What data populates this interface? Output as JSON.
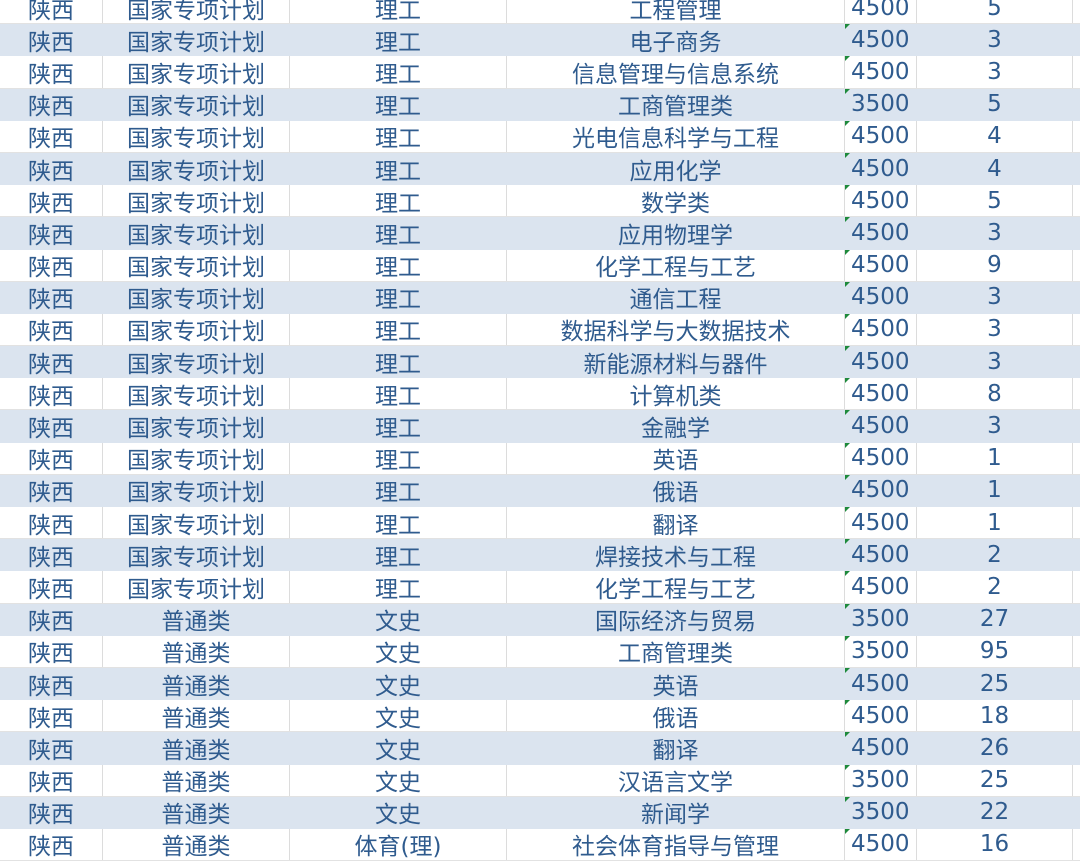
{
  "colors": {
    "text": "#2f5b8e",
    "band": "#dbe4ef",
    "number_marker": "#1e8a3c"
  },
  "rows": [
    [
      "陕西",
      "国家专项计划",
      "理工",
      "工程管理",
      "4500",
      "5"
    ],
    [
      "陕西",
      "国家专项计划",
      "理工",
      "电子商务",
      "4500",
      "3"
    ],
    [
      "陕西",
      "国家专项计划",
      "理工",
      "信息管理与信息系统",
      "4500",
      "3"
    ],
    [
      "陕西",
      "国家专项计划",
      "理工",
      "工商管理类",
      "3500",
      "5"
    ],
    [
      "陕西",
      "国家专项计划",
      "理工",
      "光电信息科学与工程",
      "4500",
      "4"
    ],
    [
      "陕西",
      "国家专项计划",
      "理工",
      "应用化学",
      "4500",
      "4"
    ],
    [
      "陕西",
      "国家专项计划",
      "理工",
      "数学类",
      "4500",
      "5"
    ],
    [
      "陕西",
      "国家专项计划",
      "理工",
      "应用物理学",
      "4500",
      "3"
    ],
    [
      "陕西",
      "国家专项计划",
      "理工",
      "化学工程与工艺",
      "4500",
      "9"
    ],
    [
      "陕西",
      "国家专项计划",
      "理工",
      "通信工程",
      "4500",
      "3"
    ],
    [
      "陕西",
      "国家专项计划",
      "理工",
      "数据科学与大数据技术",
      "4500",
      "3"
    ],
    [
      "陕西",
      "国家专项计划",
      "理工",
      "新能源材料与器件",
      "4500",
      "3"
    ],
    [
      "陕西",
      "国家专项计划",
      "理工",
      "计算机类",
      "4500",
      "8"
    ],
    [
      "陕西",
      "国家专项计划",
      "理工",
      "金融学",
      "4500",
      "3"
    ],
    [
      "陕西",
      "国家专项计划",
      "理工",
      "英语",
      "4500",
      "1"
    ],
    [
      "陕西",
      "国家专项计划",
      "理工",
      "俄语",
      "4500",
      "1"
    ],
    [
      "陕西",
      "国家专项计划",
      "理工",
      "翻译",
      "4500",
      "1"
    ],
    [
      "陕西",
      "国家专项计划",
      "理工",
      "焊接技术与工程",
      "4500",
      "2"
    ],
    [
      "陕西",
      "国家专项计划",
      "理工",
      "化学工程与工艺",
      "4500",
      "2"
    ],
    [
      "陕西",
      "普通类",
      "文史",
      "国际经济与贸易",
      "3500",
      "27"
    ],
    [
      "陕西",
      "普通类",
      "文史",
      "工商管理类",
      "3500",
      "95"
    ],
    [
      "陕西",
      "普通类",
      "文史",
      "英语",
      "4500",
      "25"
    ],
    [
      "陕西",
      "普通类",
      "文史",
      "俄语",
      "4500",
      "18"
    ],
    [
      "陕西",
      "普通类",
      "文史",
      "翻译",
      "4500",
      "26"
    ],
    [
      "陕西",
      "普通类",
      "文史",
      "汉语言文学",
      "3500",
      "25"
    ],
    [
      "陕西",
      "普通类",
      "文史",
      "新闻学",
      "3500",
      "22"
    ],
    [
      "陕西",
      "普通类",
      "体育(理)",
      "社会体育指导与管理",
      "4500",
      "16"
    ]
  ]
}
